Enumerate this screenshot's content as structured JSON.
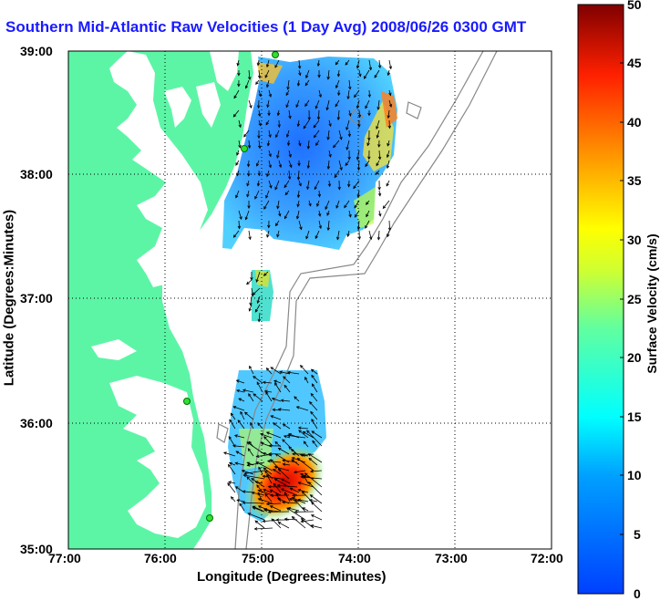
{
  "title": "Southern Mid-Atlantic Raw Velocities (1 Day Avg) 2008/06/26 0300 GMT",
  "map": {
    "xlabel": "Longitude (Degrees:Minutes)",
    "ylabel": "Latitude (Degrees:Minutes)",
    "lon_ticks": [
      "77:00",
      "76:00",
      "75:00",
      "74:00",
      "73:00",
      "72:00"
    ],
    "lat_ticks": [
      "39:00",
      "38:00",
      "37:00",
      "36:00",
      "35:00"
    ],
    "lon_range": [
      -77,
      -72
    ],
    "lat_range": [
      35,
      39
    ],
    "grid": true,
    "land_color": "#5cf5a6"
  },
  "colorbar": {
    "label": "Surface Velocity (cm/s)",
    "range": [
      0,
      50
    ],
    "ticks": [
      "50",
      "45",
      "40",
      "35",
      "30",
      "25",
      "20",
      "15",
      "10",
      "5",
      "0"
    ],
    "colormap": "jet"
  },
  "chart_data": {
    "type": "heatmap",
    "title": "Southern Mid-Atlantic Raw Velocities (1 Day Avg) 2008/06/26 0300 GMT",
    "xlabel": "Longitude (Degrees:Minutes)",
    "ylabel": "Latitude (Degrees:Minutes)",
    "xlim": [
      -77,
      -72
    ],
    "ylim": [
      35,
      39
    ],
    "colorbar_range": [
      0,
      50
    ],
    "regions": [
      {
        "lon_range": [
          -75.2,
          -74.2
        ],
        "lat_range": [
          37.5,
          39.0
        ],
        "typical_speed": 8
      },
      {
        "lon_range": [
          -74.2,
          -73.85
        ],
        "lat_range": [
          38.0,
          38.75
        ],
        "typical_speed": 28
      },
      {
        "lon_range": [
          -75.15,
          -74.95
        ],
        "lat_range": [
          36.8,
          37.2
        ],
        "typical_speed": 15
      },
      {
        "lon_range": [
          -75.3,
          -74.2
        ],
        "lat_range": [
          35.2,
          36.4
        ],
        "typical_speed": 12
      },
      {
        "lon_range": [
          -75.0,
          -74.5
        ],
        "lat_range": [
          35.2,
          35.8
        ],
        "typical_speed": 42
      }
    ]
  }
}
